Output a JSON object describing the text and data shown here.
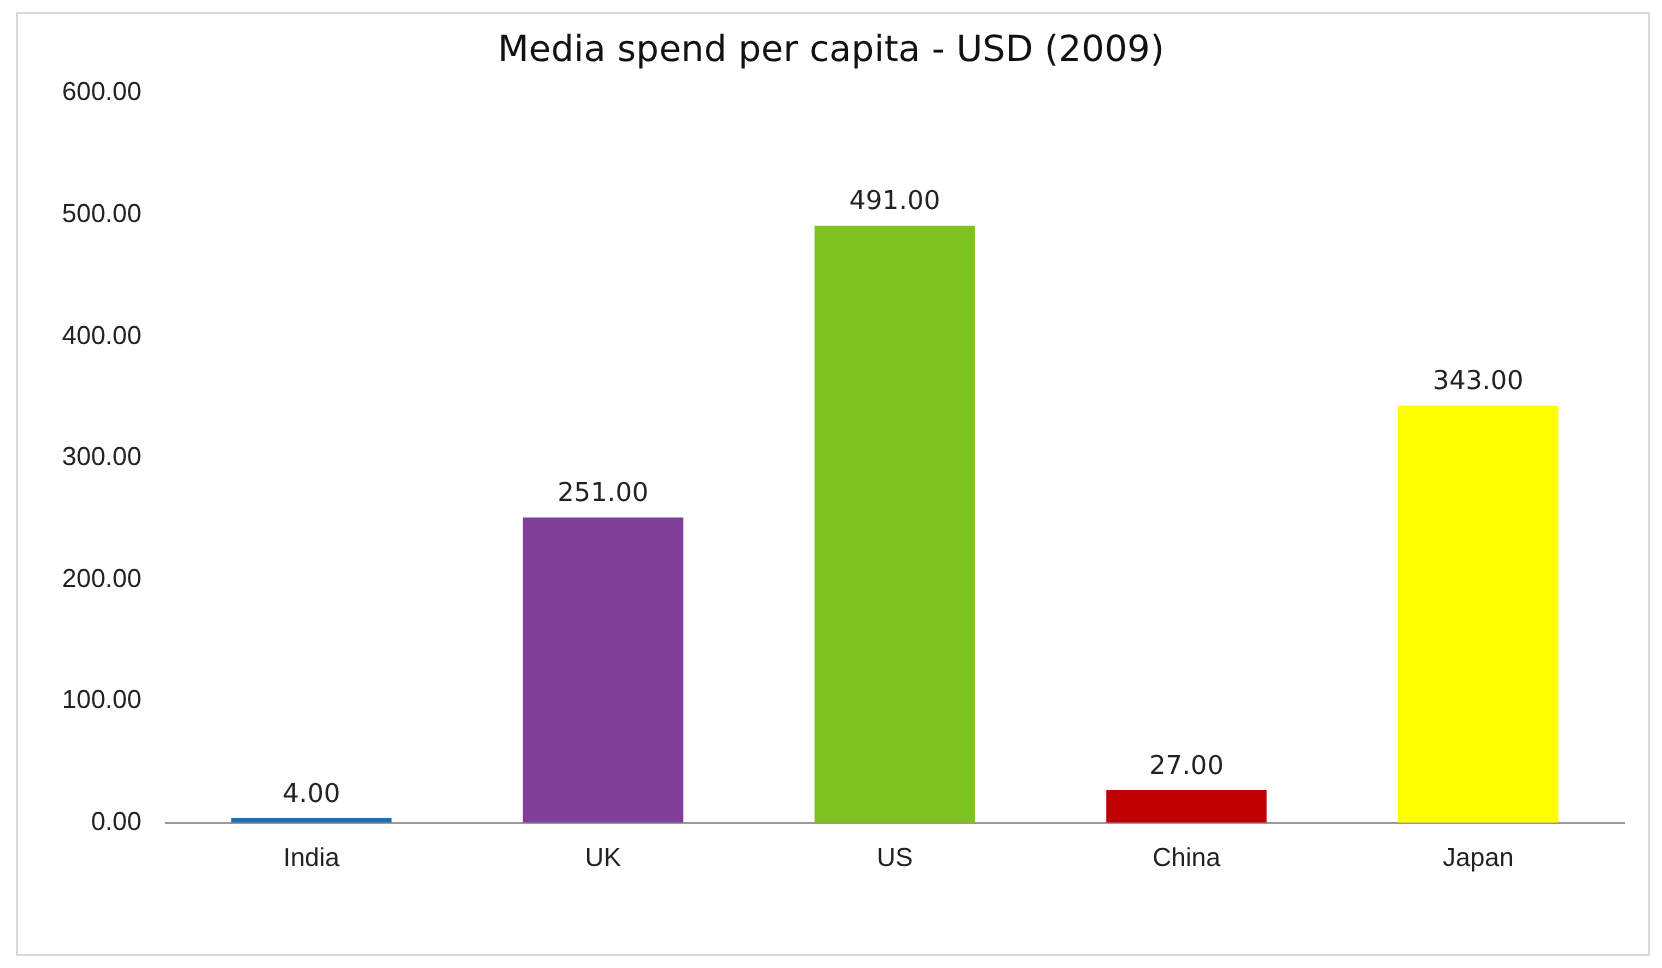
{
  "chart_data": {
    "type": "bar",
    "title": "Media spend per capita - USD (2009)",
    "categories": [
      "India",
      "UK",
      "US",
      "China",
      "Japan"
    ],
    "values": [
      4,
      251,
      491,
      27,
      343
    ],
    "colors": [
      "#1f6fb4",
      "#7f3f98",
      "#7dc21e",
      "#c00000",
      "#ffff00"
    ],
    "value_labels": [
      "4.00",
      "251.00",
      "491.00",
      "27.00",
      "343.00"
    ],
    "ylim": [
      0,
      600
    ],
    "yticks": [
      {
        "value": 0,
        "label": "0.00"
      },
      {
        "value": 100,
        "label": "100.00"
      },
      {
        "value": 200,
        "label": "200.00"
      },
      {
        "value": 300,
        "label": "300.00"
      },
      {
        "value": 400,
        "label": "400.00"
      },
      {
        "value": 500,
        "label": "500.00"
      },
      {
        "value": 600,
        "label": "600.00"
      }
    ],
    "grid": false,
    "legend": false
  }
}
